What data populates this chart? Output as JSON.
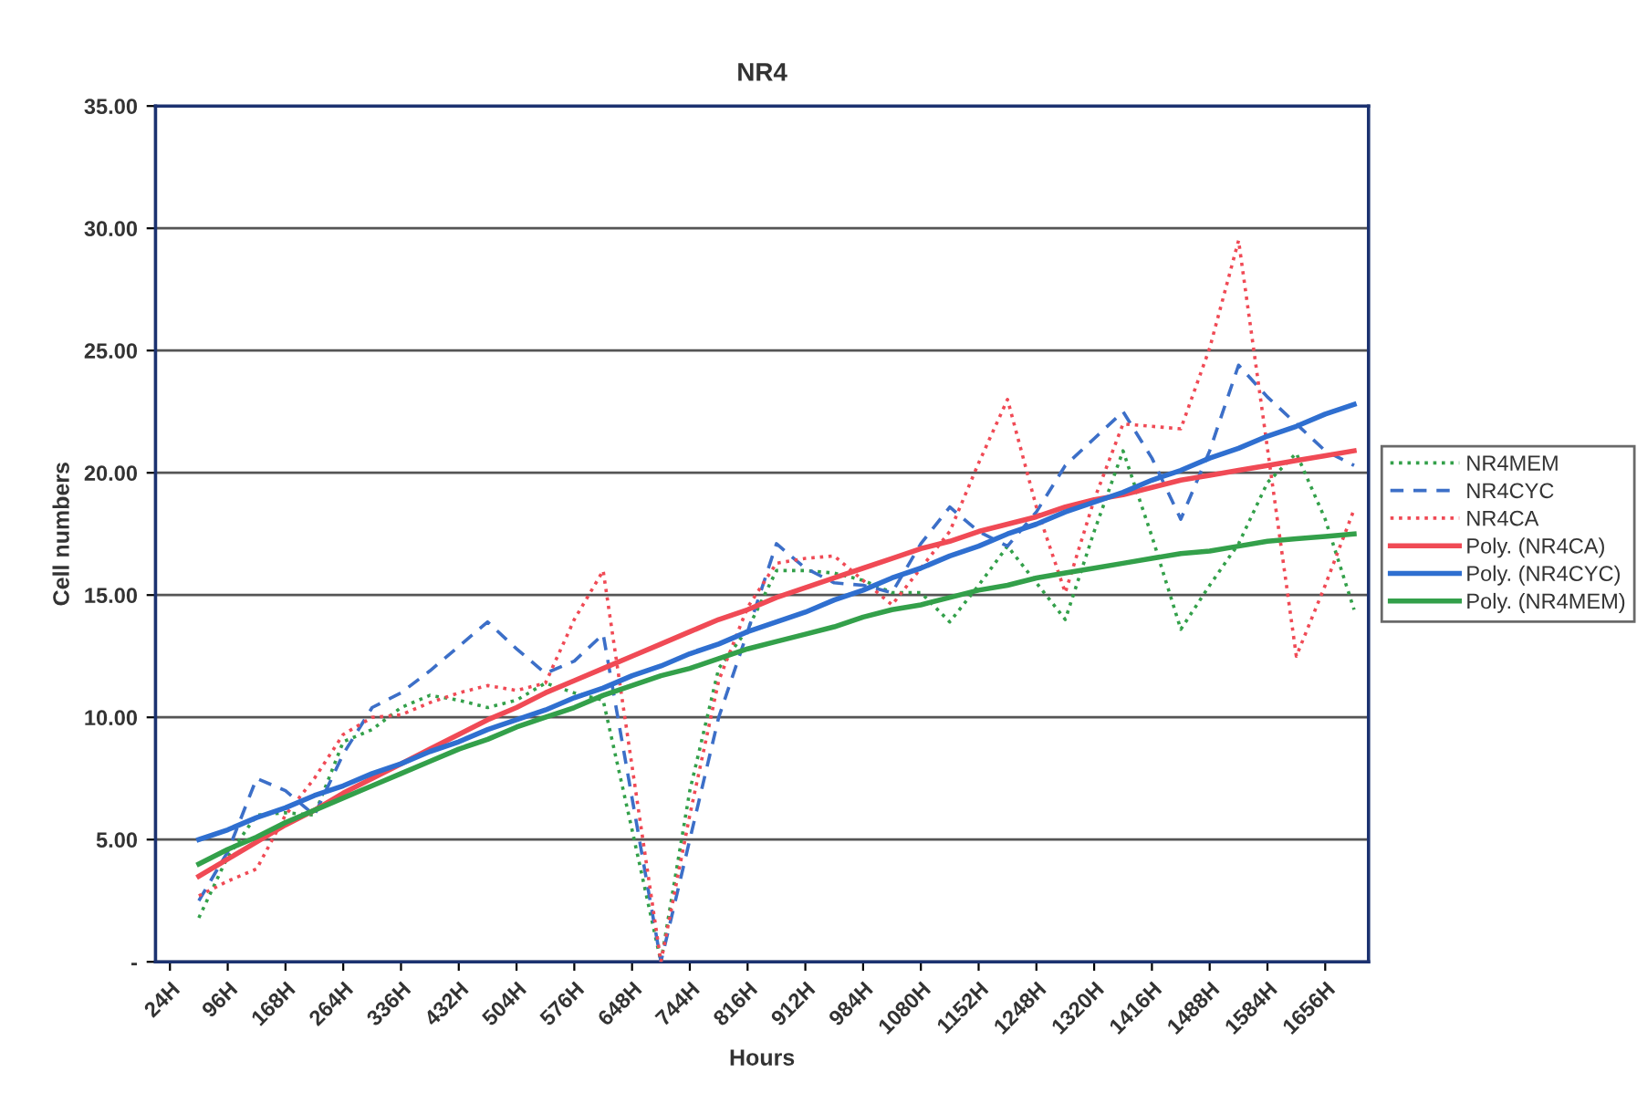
{
  "chart_data": {
    "type": "line",
    "title": "NR4",
    "xlabel": "Hours",
    "ylabel": "Cell numbers",
    "categories": [
      "24H",
      null,
      "96H",
      null,
      "168H",
      null,
      "264H",
      null,
      "336H",
      null,
      "432H",
      null,
      "504H",
      null,
      "576H",
      null,
      "648H",
      null,
      "744H",
      null,
      "816H",
      null,
      "912H",
      null,
      "984H",
      null,
      "1080H",
      null,
      "1152H",
      null,
      "1248H",
      null,
      "1320H",
      null,
      "1416H",
      null,
      "1488H",
      null,
      "1584H",
      null,
      "1656H",
      null
    ],
    "ylim": [
      0,
      35
    ],
    "yticks": [
      {
        "value": 0,
        "label": "-"
      },
      {
        "value": 5,
        "label": "5.00"
      },
      {
        "value": 10,
        "label": "10.00"
      },
      {
        "value": 15,
        "label": "15.00"
      },
      {
        "value": 20,
        "label": "20.00"
      },
      {
        "value": 25,
        "label": "25.00"
      },
      {
        "value": 30,
        "label": "30.00"
      },
      {
        "value": 35,
        "label": "35.00"
      }
    ],
    "grid": "y",
    "legend": "right",
    "series": [
      {
        "name": "NR4MEM",
        "color": "#33a04a",
        "line_style": "dotted",
        "values": [
          null,
          1.8,
          4.3,
          6.0,
          6.1,
          6.0,
          9.0,
          9.5,
          10.4,
          10.9,
          10.7,
          10.4,
          10.7,
          11.4,
          11.0,
          10.7,
          5.4,
          0,
          7.0,
          12.0,
          13.6,
          16.0,
          16.0,
          15.9,
          15.6,
          15.1,
          15.1,
          13.9,
          15.4,
          17.0,
          15.5,
          14.0,
          17.6,
          20.9,
          17.4,
          13.6,
          15.4,
          17.1,
          19.6,
          20.8,
          18.1,
          14.4
        ]
      },
      {
        "name": "NR4CYC",
        "color": "#3c6fc8",
        "line_style": "dashed",
        "values": [
          null,
          2.5,
          4.5,
          7.5,
          7.0,
          6.0,
          8.5,
          10.4,
          11.0,
          11.9,
          12.9,
          13.9,
          12.8,
          11.8,
          12.3,
          13.4,
          6.7,
          0,
          5.0,
          10.0,
          13.5,
          17.1,
          16.1,
          15.5,
          15.4,
          15.1,
          17.1,
          18.6,
          17.6,
          17.0,
          18.4,
          20.3,
          21.4,
          22.5,
          20.6,
          18.1,
          20.9,
          24.4,
          23.1,
          22.0,
          20.9,
          20.3
        ]
      },
      {
        "name": "NR4CA",
        "color": "#f04a55",
        "line_style": "dotted",
        "values": [
          null,
          2.7,
          3.3,
          3.8,
          6.0,
          7.5,
          9.3,
          10.0,
          10.1,
          10.6,
          11.0,
          11.3,
          11.1,
          11.4,
          14.0,
          16.0,
          8.0,
          0,
          6.0,
          11.5,
          14.5,
          16.3,
          16.5,
          16.6,
          15.6,
          14.6,
          16.1,
          17.6,
          20.4,
          23.0,
          18.6,
          15.1,
          18.9,
          22.0,
          21.9,
          21.8,
          25.1,
          29.5,
          21.0,
          12.5,
          15.4,
          18.5
        ]
      },
      {
        "name": "Poly. (NR4CA)",
        "color": "#f04a55",
        "line_style": "solid",
        "values": [
          null,
          3.5,
          4.2,
          4.9,
          5.6,
          6.2,
          6.9,
          7.5,
          8.1,
          8.7,
          9.3,
          9.9,
          10.4,
          11.0,
          11.5,
          12.0,
          12.5,
          13.0,
          13.5,
          14.0,
          14.4,
          14.9,
          15.3,
          15.7,
          16.1,
          16.5,
          16.9,
          17.2,
          17.6,
          17.9,
          18.2,
          18.6,
          18.9,
          19.1,
          19.4,
          19.7,
          19.9,
          20.1,
          20.3,
          20.5,
          20.7,
          20.9
        ]
      },
      {
        "name": "Poly. (NR4CYC)",
        "color": "#2f6fd0",
        "line_style": "solid",
        "values": [
          null,
          5.0,
          5.4,
          5.9,
          6.3,
          6.8,
          7.2,
          7.7,
          8.1,
          8.6,
          9.0,
          9.5,
          9.9,
          10.3,
          10.8,
          11.2,
          11.7,
          12.1,
          12.6,
          13.0,
          13.5,
          13.9,
          14.3,
          14.8,
          15.2,
          15.7,
          16.1,
          16.6,
          17.0,
          17.5,
          17.9,
          18.4,
          18.8,
          19.2,
          19.7,
          20.1,
          20.6,
          21.0,
          21.5,
          21.9,
          22.4,
          22.8
        ]
      },
      {
        "name": "Poly. (NR4MEM)",
        "color": "#33a04a",
        "line_style": "solid",
        "values": [
          null,
          4.0,
          4.6,
          5.1,
          5.7,
          6.2,
          6.7,
          7.2,
          7.7,
          8.2,
          8.7,
          9.1,
          9.6,
          10.0,
          10.4,
          10.9,
          11.3,
          11.7,
          12.0,
          12.4,
          12.8,
          13.1,
          13.4,
          13.7,
          14.1,
          14.4,
          14.6,
          14.9,
          15.2,
          15.4,
          15.7,
          15.9,
          16.1,
          16.3,
          16.5,
          16.7,
          16.8,
          17.0,
          17.2,
          17.3,
          17.4,
          17.5
        ]
      }
    ]
  }
}
